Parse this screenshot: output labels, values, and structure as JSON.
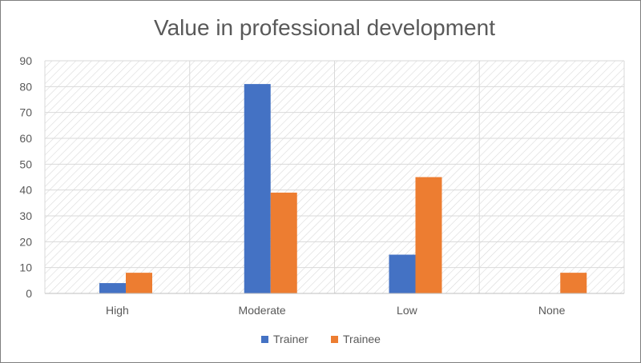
{
  "chart_data": {
    "type": "bar",
    "title": "Value in professional development",
    "categories": [
      "High",
      "Moderate",
      "Low",
      "None"
    ],
    "series": [
      {
        "name": "Trainer",
        "values": [
          4,
          81,
          15,
          0
        ],
        "color": "#4472c4"
      },
      {
        "name": "Trainee",
        "values": [
          8,
          39,
          45,
          8
        ],
        "color": "#ed7d31"
      }
    ],
    "ylim": [
      0,
      90
    ],
    "yticks": [
      0,
      10,
      20,
      30,
      40,
      50,
      60,
      70,
      80,
      90
    ],
    "grid": true,
    "legend_position": "bottom"
  }
}
